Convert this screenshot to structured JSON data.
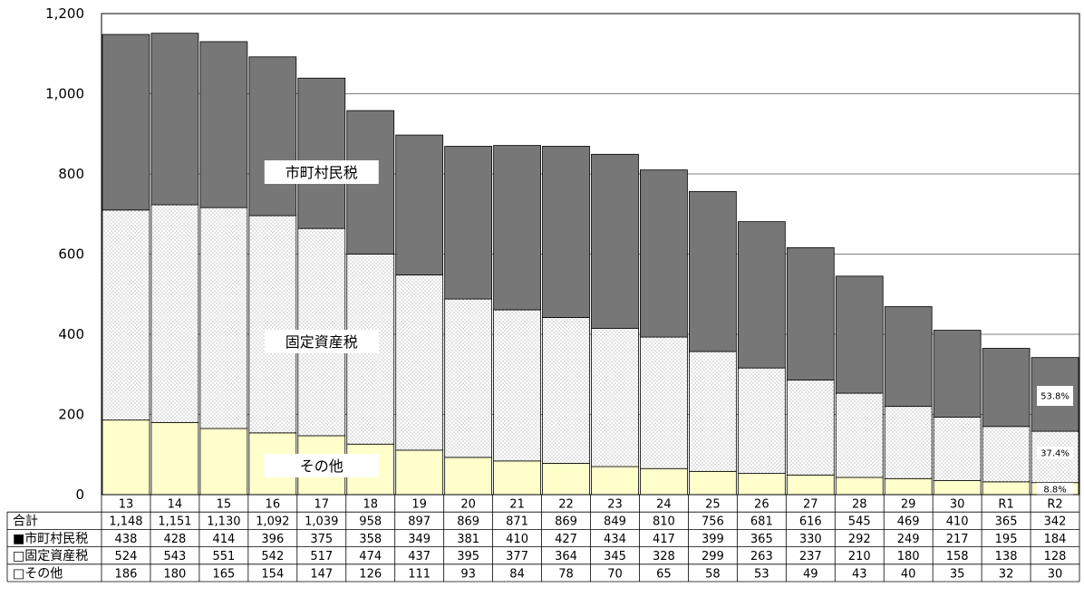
{
  "chart_data": {
    "type": "bar",
    "stacked": true,
    "categories": [
      "13",
      "14",
      "15",
      "16",
      "17",
      "18",
      "19",
      "20",
      "21",
      "22",
      "23",
      "24",
      "25",
      "26",
      "27",
      "28",
      "29",
      "30",
      "R1",
      "R2"
    ],
    "series": [
      {
        "name": "その他",
        "values": [
          186,
          180,
          165,
          154,
          147,
          126,
          111,
          93,
          84,
          78,
          70,
          65,
          58,
          53,
          49,
          43,
          40,
          35,
          32,
          30
        ],
        "color": "#ffffcc",
        "pattern": "none"
      },
      {
        "name": "固定資産税",
        "values": [
          524,
          543,
          551,
          542,
          517,
          474,
          437,
          395,
          377,
          364,
          345,
          328,
          299,
          263,
          237,
          210,
          180,
          158,
          138,
          128
        ],
        "color": "#ffffff",
        "pattern": "dotted-grid"
      },
      {
        "name": "市町村民税",
        "values": [
          438,
          428,
          414,
          396,
          375,
          358,
          349,
          381,
          410,
          427,
          434,
          417,
          399,
          365,
          330,
          292,
          249,
          217,
          195,
          184
        ],
        "color": "#777777",
        "pattern": "none"
      }
    ],
    "totals": [
      1148,
      1151,
      1130,
      1092,
      1039,
      958,
      897,
      869,
      871,
      869,
      849,
      810,
      756,
      681,
      616,
      545,
      469,
      410,
      365,
      342
    ],
    "ylim": [
      0,
      1200
    ],
    "yticks": [
      "0",
      "200",
      "400",
      "600",
      "800",
      "1,000",
      "1,200"
    ],
    "ytick_values": [
      0,
      200,
      400,
      600,
      800,
      1000,
      1200
    ],
    "grid": true,
    "annotations": {
      "series_labels": [
        "市町村民税",
        "固定資産税",
        "その他"
      ],
      "percents": [
        "53.8%",
        "37.4%",
        "8.8%"
      ]
    },
    "table": {
      "row_labels": [
        "合計",
        "■市町村民税",
        "□固定資産税",
        "□その他"
      ],
      "rows": [
        [
          "1,148",
          "1,151",
          "1,130",
          "1,092",
          "1,039",
          "958",
          "897",
          "869",
          "871",
          "869",
          "849",
          "810",
          "756",
          "681",
          "616",
          "545",
          "469",
          "410",
          "365",
          "342"
        ],
        [
          "438",
          "428",
          "414",
          "396",
          "375",
          "358",
          "349",
          "381",
          "410",
          "427",
          "434",
          "417",
          "399",
          "365",
          "330",
          "292",
          "249",
          "217",
          "195",
          "184"
        ],
        [
          "524",
          "543",
          "551",
          "542",
          "517",
          "474",
          "437",
          "395",
          "377",
          "364",
          "345",
          "328",
          "299",
          "263",
          "237",
          "210",
          "180",
          "158",
          "138",
          "128"
        ],
        [
          "186",
          "180",
          "165",
          "154",
          "147",
          "126",
          "111",
          "93",
          "84",
          "78",
          "70",
          "65",
          "58",
          "53",
          "49",
          "43",
          "40",
          "35",
          "32",
          "30"
        ]
      ]
    }
  }
}
